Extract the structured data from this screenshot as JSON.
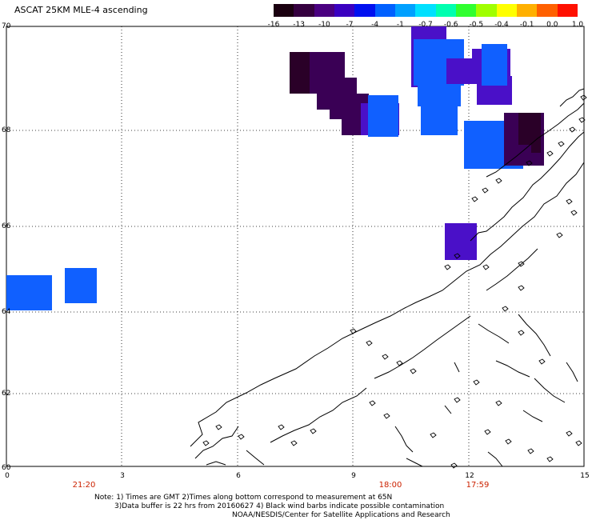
{
  "title": "ASCAT 25KM MLE-4 ascending",
  "colorbar": {
    "labels": [
      "-16",
      "-13",
      "-10",
      "-7",
      "-4",
      "-1",
      "-0.7",
      "-0.6",
      "-0.5",
      "-0.4",
      "-0.1",
      "0.0",
      "1.0"
    ],
    "colors": [
      "#1a0010",
      "#35003f",
      "#4a0080",
      "#3a00c0",
      "#0010f0",
      "#0060ff",
      "#00a0ff",
      "#00e0ff",
      "#00ffb0",
      "#30ff30",
      "#a0ff00",
      "#ffff00",
      "#ffb000",
      "#ff6000",
      "#ff1000"
    ]
  },
  "axes": {
    "y_labels": [
      "70",
      "68",
      "66",
      "64",
      "62",
      "60"
    ],
    "x_labels": [
      "0",
      "3",
      "6",
      "9",
      "12",
      "15"
    ]
  },
  "times": [
    "21:20",
    "18:00",
    "17:59"
  ],
  "notes": {
    "line1": "Note: 1) Times are GMT 2)Times along bottom correspond to measurement at 65N",
    "line2": "3)Data buffer is 22 hrs from 20160627 4) Black wind barbs indicate possible contamination",
    "line3": "NOAA/NESDIS/Center for Satellite Applications and Research"
  },
  "colors": {
    "blue": "#1060ff",
    "dark_purple": "#2a0028",
    "purple": "#3a0055",
    "violet": "#4a10c8",
    "coast": "#000000"
  }
}
